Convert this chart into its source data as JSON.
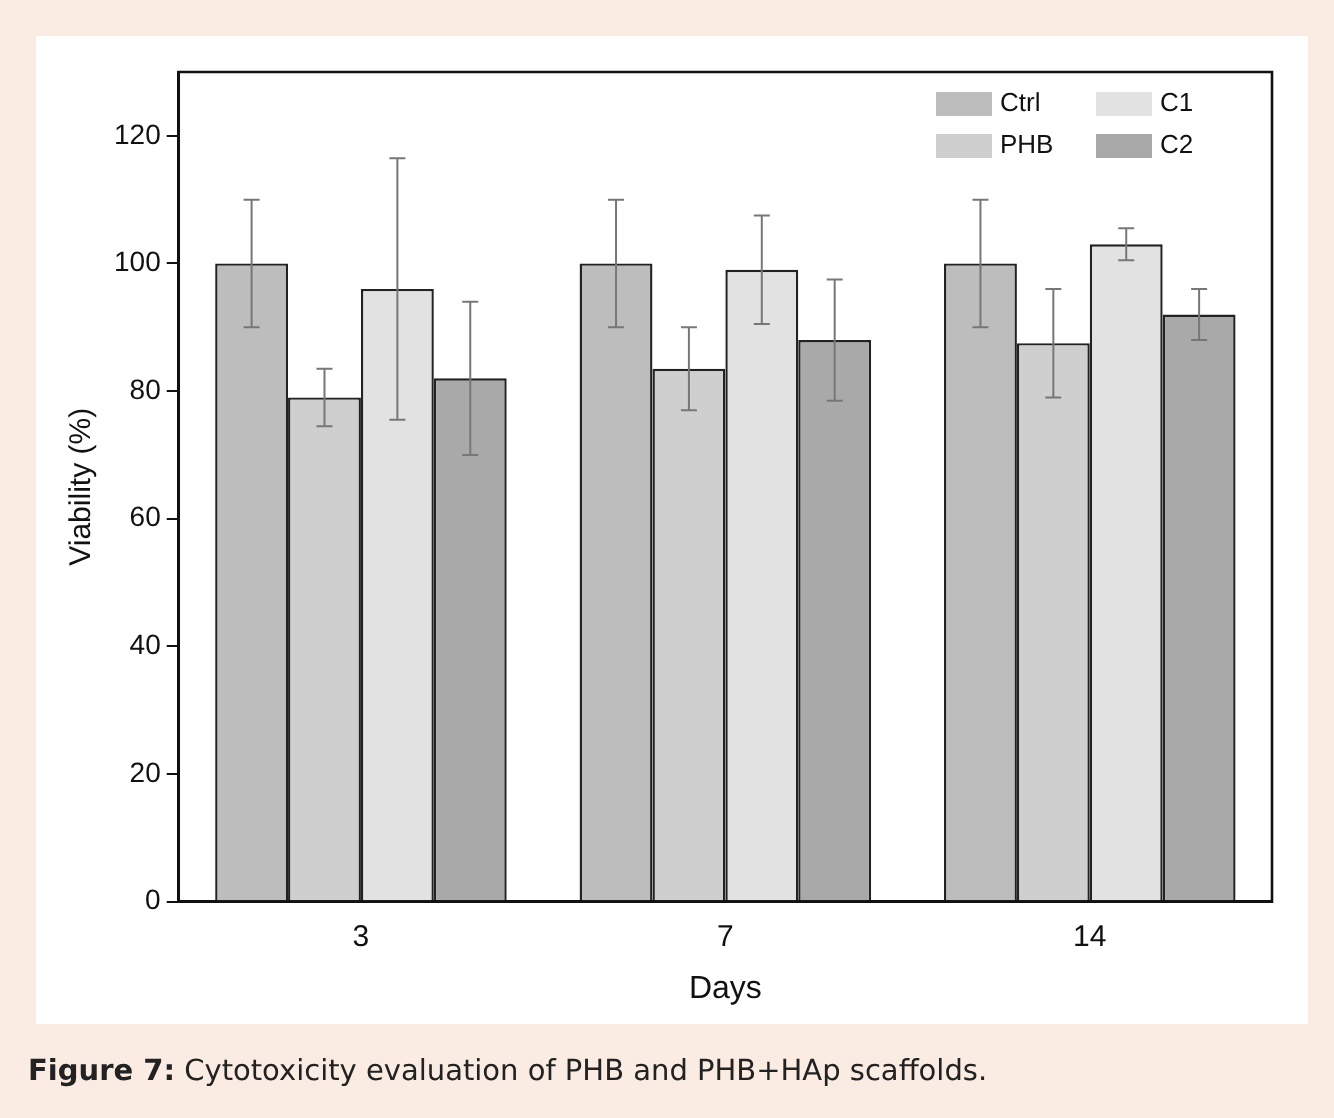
{
  "chart_data": {
    "type": "bar",
    "xlabel": "Days",
    "ylabel": "Viability (%)",
    "categories": [
      "3",
      "7",
      "14"
    ],
    "series": [
      {
        "name": "Ctrl",
        "color": "#bdbdbd",
        "values": [
          100,
          100,
          100
        ],
        "errors": [
          10,
          10,
          10
        ]
      },
      {
        "name": "PHB",
        "color": "#cfcfcf",
        "values": [
          79,
          83.5,
          87.5
        ],
        "errors": [
          4.5,
          6.5,
          8.5
        ]
      },
      {
        "name": "C1",
        "color": "#e2e2e2",
        "values": [
          96,
          99,
          103
        ],
        "errors": [
          20.5,
          8.5,
          2.5
        ]
      },
      {
        "name": "C2",
        "color": "#a9a9a9",
        "values": [
          82,
          88,
          92
        ],
        "errors": [
          12,
          9.5,
          4
        ]
      }
    ],
    "ylim": [
      0,
      130
    ],
    "yticks": [
      0,
      20,
      40,
      60,
      80,
      100,
      120
    ],
    "grid": false,
    "legend": "top right",
    "annotations": [
      "Figure 7: Cytotoxicity evaluation of PHB and PHB+HAp scaffolds."
    ]
  }
}
